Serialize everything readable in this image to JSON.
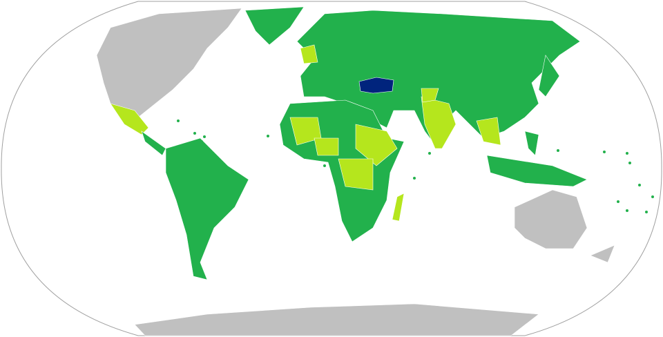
{
  "map": {
    "projection": "robinson-world",
    "colors": {
      "ocean": "#ffffff",
      "outline": "#a0a0a0",
      "no_data": "#c0c0c0",
      "category_main": "#22b14c",
      "category_secondary": "#b5e61d",
      "highlight_country": "#00247d"
    },
    "highlighted_country": "Turkey"
  }
}
